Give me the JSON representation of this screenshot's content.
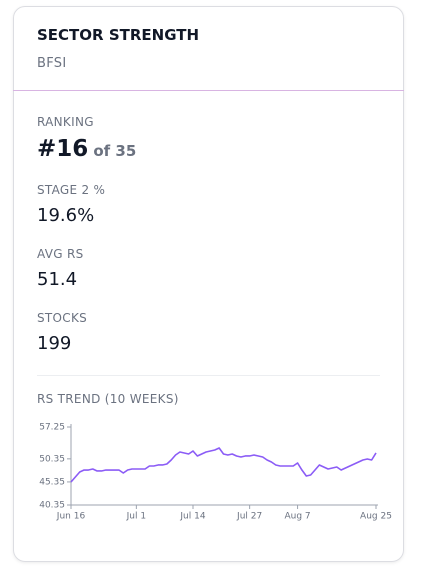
{
  "header": {
    "title": "SECTOR STRENGTH",
    "subtitle": "BFSI"
  },
  "ranking": {
    "label": "RANKING",
    "value": "#16",
    "of": "of 35"
  },
  "stats": [
    {
      "label": "STAGE 2 %",
      "value": "19.6%"
    },
    {
      "label": "AVG RS",
      "value": "51.4"
    },
    {
      "label": "STOCKS",
      "value": "199"
    }
  ],
  "chart_data": {
    "type": "line",
    "title": "RS TREND (10 WEEKS)",
    "color": "#8b5cf6",
    "categories": [
      "Jun 16",
      null,
      null,
      null,
      null,
      null,
      null,
      null,
      null,
      null,
      null,
      null,
      null,
      null,
      null,
      "Jul 1",
      null,
      null,
      null,
      null,
      null,
      null,
      null,
      null,
      null,
      null,
      null,
      null,
      "Jul 14",
      null,
      null,
      null,
      null,
      null,
      null,
      null,
      null,
      null,
      null,
      null,
      null,
      "Jul 27",
      null,
      null,
      null,
      null,
      null,
      null,
      null,
      null,
      null,
      null,
      "Aug 7",
      null,
      null,
      null,
      null,
      null,
      null,
      null,
      null,
      null,
      null,
      null,
      null,
      null,
      null,
      null,
      null,
      null,
      "Aug 25"
    ],
    "values": [
      45.33,
      46.42,
      47.5,
      47.93,
      47.93,
      48.15,
      47.72,
      47.72,
      47.93,
      47.93,
      47.93,
      47.93,
      47.28,
      47.93,
      48.15,
      48.15,
      48.15,
      48.15,
      48.8,
      48.8,
      49.02,
      49.02,
      49.23,
      50.1,
      51.18,
      51.83,
      51.62,
      51.4,
      52.05,
      50.97,
      51.4,
      51.83,
      52.05,
      52.27,
      52.7,
      51.4,
      51.18,
      51.4,
      50.97,
      50.75,
      50.97,
      50.97,
      51.18,
      50.97,
      50.75,
      50.1,
      49.67,
      49.02,
      48.8,
      48.8,
      48.8,
      48.8,
      49.45,
      47.93,
      46.63,
      46.85,
      47.93,
      49.02,
      48.58,
      48.15,
      48.37,
      48.58,
      47.93,
      48.37,
      48.8,
      49.23,
      49.67,
      50.1,
      50.32,
      50.1,
      51.62
    ],
    "ylim": [
      40.35,
      57.25
    ],
    "yticks": [
      40.35,
      45.35,
      50.35,
      57.25
    ]
  }
}
